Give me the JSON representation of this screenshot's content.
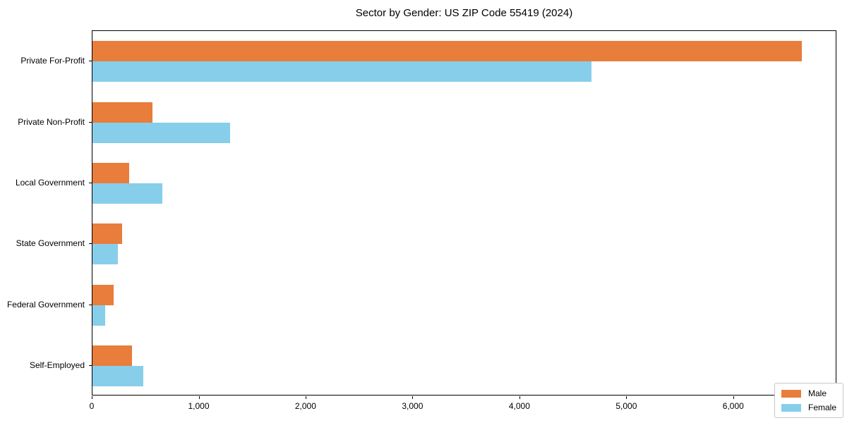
{
  "chart_data": {
    "type": "bar",
    "orientation": "horizontal",
    "title": "Sector by Gender: US ZIP Code 55419 (2024)",
    "categories": [
      "Private For-Profit",
      "Private Non-Profit",
      "Local Government",
      "State Government",
      "Federal Government",
      "Self-Employed"
    ],
    "series": [
      {
        "name": "Male",
        "color": "#e87d3c",
        "values": [
          6635,
          560,
          340,
          280,
          195,
          370
        ]
      },
      {
        "name": "Female",
        "color": "#87ceeb",
        "values": [
          4665,
          1285,
          650,
          235,
          120,
          475
        ]
      }
    ],
    "xlabel": "",
    "ylabel": "",
    "xlim": [
      0,
      6965
    ],
    "x_ticks": [
      0,
      1000,
      2000,
      3000,
      4000,
      5000,
      6000
    ],
    "x_tick_labels": [
      "0",
      "1,000",
      "2,000",
      "3,000",
      "4,000",
      "5,000",
      "6,000"
    ],
    "grid": false,
    "legend": {
      "position": "lower right",
      "entries": [
        "Male",
        "Female"
      ]
    },
    "colors": {
      "background": "#ffffff",
      "axis": "#000000",
      "legend_border": "#c8c8c8"
    }
  }
}
